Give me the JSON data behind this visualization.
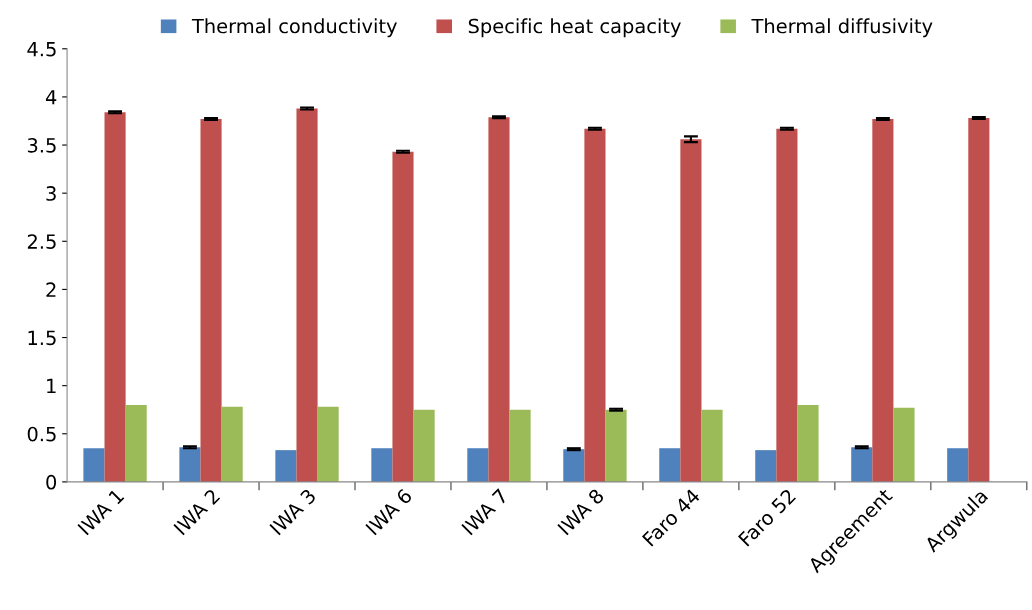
{
  "chart_data": {
    "type": "bar",
    "categories": [
      "IWA 1",
      "IWA 2",
      "IWA 3",
      "IWA 6",
      "IWA 7",
      "IWA 8",
      "Faro 44",
      "Faro 52",
      "Agreement",
      "Argwula"
    ],
    "series": [
      {
        "name": "Thermal conductivity",
        "color": "#4f81bd",
        "values": [
          0.35,
          0.36,
          0.33,
          0.35,
          0.35,
          0.34,
          0.35,
          0.33,
          0.36,
          0.35
        ],
        "errors": [
          null,
          0.01,
          null,
          null,
          null,
          0.01,
          null,
          null,
          0.01,
          null
        ]
      },
      {
        "name": "Specific heat capacity",
        "color": "#c0504d",
        "values": [
          3.84,
          3.77,
          3.88,
          3.43,
          3.79,
          3.67,
          3.56,
          3.67,
          3.77,
          3.78
        ],
        "errors": [
          0.01,
          0.01,
          0.01,
          0.01,
          0.01,
          0.01,
          0.03,
          0.01,
          0.01,
          0.01
        ]
      },
      {
        "name": "Thermal diffusivity",
        "color": "#9bbb59",
        "values": [
          0.8,
          0.78,
          0.78,
          0.75,
          0.75,
          0.75,
          0.75,
          0.8,
          0.77,
          null
        ],
        "errors": [
          null,
          null,
          null,
          null,
          null,
          0.01,
          null,
          null,
          null,
          null
        ]
      }
    ],
    "ylim": [
      0,
      4.5
    ],
    "yticks": [
      0,
      0.5,
      1,
      1.5,
      2,
      2.5,
      3,
      3.5,
      4,
      4.5
    ],
    "legend": "top",
    "grid": false
  }
}
